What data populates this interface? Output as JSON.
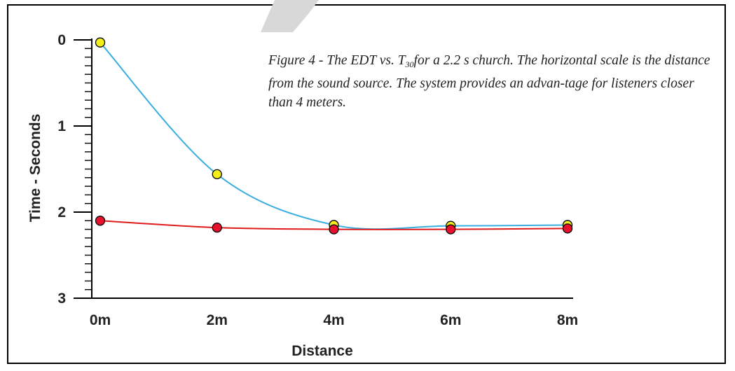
{
  "chart_data": {
    "type": "line",
    "title": "",
    "caption_parts": [
      "Figure 4 - The EDT vs. T",
      "30",
      "for a 2.2 s church. The horizontal scale is the distance from the sound source. The system provides an advan-tage for listeners closer than 4 meters."
    ],
    "xlabel": "Distance",
    "ylabel": "Time - Seconds",
    "categories": [
      "0m",
      "2m",
      "4m",
      "6m",
      "8m"
    ],
    "x": [
      0,
      2,
      4,
      6,
      8
    ],
    "y_ticks": [
      "0",
      "1",
      "2",
      "3"
    ],
    "ylim": [
      0,
      3
    ],
    "y_inverted": true,
    "grid": false,
    "series": [
      {
        "values": [
          0.03,
          1.56,
          2.15,
          2.16,
          2.15
        ],
        "line_color": "#3aaee0",
        "marker_color": "#f4ee1b"
      },
      {
        "values": [
          2.1,
          2.18,
          2.2,
          2.2,
          2.19
        ],
        "line_color": "#e01b1b",
        "marker_color": "#e8112d"
      }
    ]
  }
}
